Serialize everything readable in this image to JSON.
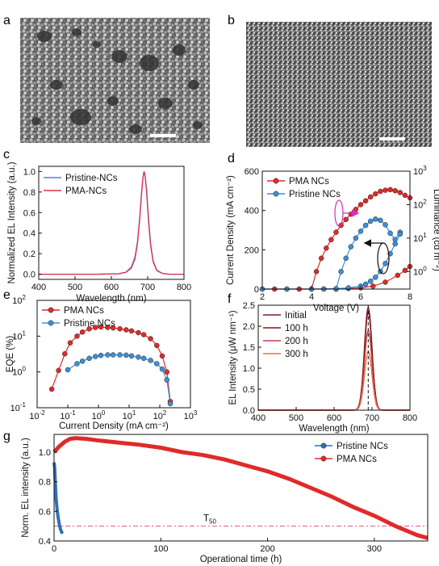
{
  "panels": {
    "a": "a",
    "b": "b",
    "c": "c",
    "d": "d",
    "e": "e",
    "f": "f",
    "g": "g"
  },
  "colors": {
    "red": "#e02a2a",
    "red_dark": "#a01818",
    "blue": "#3d8fd6",
    "blue_dark": "#1d5d9c",
    "magenta": "#d62fb8",
    "pink_line": "#e0508c"
  },
  "chart_data": [
    {
      "id": "c",
      "type": "line",
      "xlabel": "Wavelength (nm)",
      "ylabel": "Normalized EL Intensity (a.u.)",
      "xlim": [
        400,
        800
      ],
      "ylim": [
        -0.05,
        1.05
      ],
      "xticks": [
        400,
        500,
        600,
        700,
        800
      ],
      "yticks": [
        0.0,
        0.2,
        0.4,
        0.6,
        0.8,
        1.0
      ],
      "ytick_labels": [
        "0.0",
        "0.2",
        "0.4",
        "0.6",
        "0.8",
        "1.0"
      ],
      "legend_position": "top-left",
      "series": [
        {
          "name": "Pristine-NCs",
          "color": "#5b7fd6",
          "x": [
            400,
            560,
            620,
            640,
            655,
            665,
            672,
            678,
            683,
            687,
            690,
            693,
            697,
            702,
            708,
            715,
            725,
            740,
            760,
            800
          ],
          "y": [
            0.0,
            0.0,
            0.005,
            0.02,
            0.07,
            0.17,
            0.32,
            0.55,
            0.8,
            0.95,
            1.0,
            0.96,
            0.82,
            0.56,
            0.3,
            0.13,
            0.04,
            0.01,
            0.0,
            0.0
          ]
        },
        {
          "name": "PMA-NCs",
          "color": "#e0304a",
          "x": [
            400,
            560,
            620,
            640,
            655,
            665,
            672,
            678,
            683,
            687,
            690,
            693,
            697,
            702,
            708,
            715,
            725,
            740,
            760,
            800
          ],
          "y": [
            0.0,
            0.0,
            0.004,
            0.018,
            0.06,
            0.15,
            0.3,
            0.53,
            0.78,
            0.94,
            1.0,
            0.95,
            0.8,
            0.53,
            0.28,
            0.12,
            0.035,
            0.008,
            0.0,
            0.0
          ]
        }
      ]
    },
    {
      "id": "d",
      "type": "scatter",
      "xlabel": "Voltage (V)",
      "ylabel": "Current Density (mA cm⁻²)",
      "y2label": "Luminance (cd m⁻²)",
      "xlim": [
        2,
        8
      ],
      "ylim": [
        0,
        600
      ],
      "y2lim_log": [
        0.3,
        1000
      ],
      "xticks": [
        2,
        4,
        6,
        8
      ],
      "yticks": [
        0,
        200,
        400,
        600
      ],
      "y2ticks": [
        "10⁰",
        "10¹",
        "10²",
        "10³"
      ],
      "legend_position": "top-left",
      "series": [
        {
          "name": "PMA NCs",
          "axis": "right",
          "color": "#e02a2a",
          "x": [
            4.0,
            4.2,
            4.4,
            4.6,
            4.8,
            5.0,
            5.2,
            5.4,
            5.6,
            5.8,
            6.0,
            6.2,
            6.4,
            6.6,
            6.8,
            7.0,
            7.2,
            7.4,
            7.6,
            7.8,
            8.0
          ],
          "y": [
            0.3,
            1.0,
            2.5,
            5,
            9,
            15,
            24,
            36,
            52,
            72,
            100,
            130,
            170,
            210,
            250,
            270,
            280,
            260,
            230,
            190,
            160
          ]
        },
        {
          "name": "Pristine NCs",
          "axis": "right",
          "color": "#3d8fd6",
          "x": [
            5.0,
            5.2,
            5.4,
            5.6,
            5.8,
            6.0,
            6.2,
            6.4,
            6.6,
            6.8,
            7.0,
            7.2,
            7.4,
            7.6
          ],
          "y": [
            0.3,
            1.0,
            2.5,
            5.5,
            10,
            16,
            24,
            32,
            37,
            34,
            25,
            14,
            9,
            15
          ]
        },
        {
          "name": "PMA NCs current",
          "axis": "left",
          "color": "#e02a2a",
          "x": [
            2.0,
            2.5,
            3.0,
            3.5,
            4.0,
            4.5,
            5.0,
            5.5,
            6.0,
            6.5,
            7.0,
            7.5,
            7.8,
            8.0
          ],
          "y": [
            0,
            0,
            0,
            0,
            0,
            0.5,
            1.5,
            3,
            6,
            15,
            35,
            70,
            95,
            115
          ]
        },
        {
          "name": "Pristine NCs current",
          "axis": "left",
          "color": "#3d8fd6",
          "x": [
            2.0,
            3.0,
            4.0,
            4.5,
            5.0,
            5.5,
            6.0,
            6.2,
            6.4,
            6.6,
            6.8,
            7.0,
            7.2,
            7.4,
            7.6
          ],
          "y": [
            0,
            0,
            0,
            0,
            2,
            6,
            15,
            25,
            40,
            60,
            90,
            130,
            180,
            230,
            280
          ]
        }
      ]
    },
    {
      "id": "e",
      "type": "scatter",
      "xlabel": "Current Density (mA cm⁻²)",
      "ylabel": "EQE (%)",
      "xlim_log": [
        0.01,
        1000
      ],
      "ylim_log": [
        0.1,
        100
      ],
      "xticks": [
        "10⁻²",
        "10⁻¹",
        "10⁰",
        "10¹",
        "10²",
        "10³"
      ],
      "yticks": [
        "10⁻¹",
        "10⁰",
        "10¹",
        "10²"
      ],
      "legend_position": "top-left",
      "series": [
        {
          "name": "PMA NCs",
          "color": "#e02a2a",
          "x": [
            0.03,
            0.05,
            0.08,
            0.12,
            0.2,
            0.3,
            0.5,
            0.8,
            1.2,
            2,
            3,
            5,
            8,
            12,
            20,
            30,
            50,
            80,
            120,
            170,
            220
          ],
          "y": [
            0.33,
            1.1,
            3.2,
            6.5,
            10,
            13,
            16,
            17.5,
            18,
            17.5,
            17,
            16,
            15,
            14,
            12.5,
            11,
            8.5,
            5.5,
            2.8,
            1.0,
            0.15
          ]
        },
        {
          "name": "Pristine NCs",
          "color": "#3d8fd6",
          "x": [
            0.1,
            0.2,
            0.3,
            0.5,
            0.8,
            1.2,
            2,
            3,
            5,
            8,
            12,
            20,
            30,
            50,
            80,
            120,
            170,
            220
          ],
          "y": [
            1.15,
            1.7,
            2.0,
            2.4,
            2.7,
            2.9,
            3.0,
            3.0,
            3.0,
            2.95,
            2.8,
            2.6,
            2.4,
            2.1,
            1.7,
            1.2,
            0.6,
            0.13
          ]
        }
      ]
    },
    {
      "id": "f",
      "type": "line",
      "xlabel": "Wavelength (nm)",
      "ylabel": "EL Intensity (μW nm⁻¹)",
      "xlim": [
        400,
        800
      ],
      "ylim": [
        0,
        2.5
      ],
      "xticks": [
        400,
        500,
        600,
        700,
        800
      ],
      "yticks": [
        0.0,
        0.5,
        1.0,
        1.5,
        2.0,
        2.5
      ],
      "ytick_labels": [
        "0.0",
        "0.5",
        "1.0",
        "1.5",
        "2.0",
        "2.5"
      ],
      "vline_x": 690,
      "legend_position": "top-left",
      "series": [
        {
          "name": "Initial",
          "color": "#7a1a3a",
          "peak": 2.45
        },
        {
          "name": "100 h",
          "color": "#8a1010",
          "peak": 2.35
        },
        {
          "name": "200 h",
          "color": "#c04040",
          "peak": 1.9
        },
        {
          "name": "300 h",
          "color": "#e07050",
          "peak": 1.4
        }
      ]
    },
    {
      "id": "g",
      "type": "line",
      "xlabel": "Operational time (h)",
      "ylabel": "Norm. EL intensity (a.u.)",
      "xlim": [
        0,
        350
      ],
      "ylim": [
        0.4,
        1.12
      ],
      "xticks": [
        0,
        100,
        200,
        300
      ],
      "yticks": [
        0.4,
        0.6,
        0.8,
        1.0
      ],
      "ytick_labels": [
        "0.4",
        "0.6",
        "0.8",
        "1.0"
      ],
      "t50_label": "T",
      "t50_sub": "50",
      "t50_value": 0.5,
      "legend_position": "top-right",
      "series": [
        {
          "name": "Pristine NCs",
          "color": "#2f6fb8",
          "x": [
            0,
            0.5,
            1,
            1.5,
            2,
            3,
            4,
            5,
            6,
            7,
            8
          ],
          "y": [
            0.93,
            0.9,
            0.82,
            0.74,
            0.68,
            0.6,
            0.55,
            0.51,
            0.48,
            0.46,
            0.45
          ]
        },
        {
          "name": "PMA NCs",
          "color": "#e02a2a",
          "x": [
            0,
            5,
            10,
            15,
            20,
            30,
            40,
            60,
            80,
            100,
            120,
            140,
            160,
            180,
            200,
            220,
            240,
            260,
            280,
            300,
            320,
            340,
            350
          ],
          "y": [
            1.0,
            1.04,
            1.07,
            1.09,
            1.095,
            1.09,
            1.08,
            1.065,
            1.05,
            1.03,
            1.0,
            0.98,
            0.95,
            0.91,
            0.87,
            0.82,
            0.76,
            0.7,
            0.63,
            0.57,
            0.5,
            0.44,
            0.42
          ]
        }
      ]
    }
  ]
}
